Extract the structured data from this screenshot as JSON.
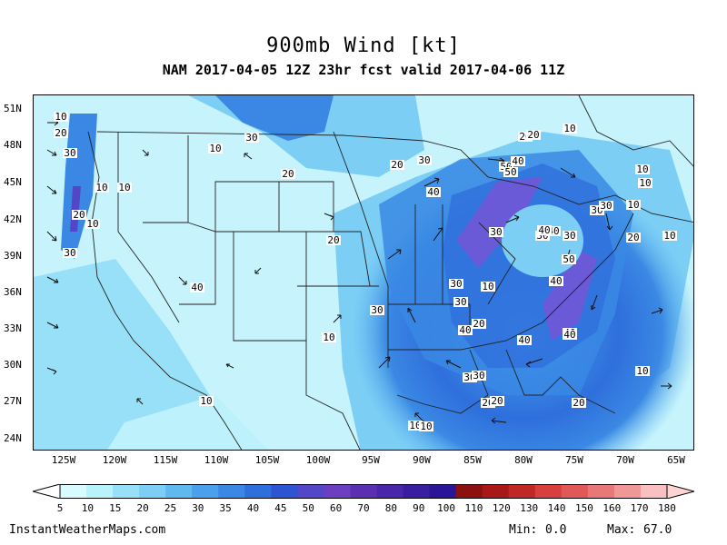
{
  "title": "900mb Wind [kt]",
  "subtitle": "NAM 2017-04-05 12Z 23hr fcst valid 2017-04-06 11Z",
  "latitudes": [
    "51N",
    "48N",
    "45N",
    "42N",
    "39N",
    "36N",
    "33N",
    "30N",
    "27N",
    "24N"
  ],
  "longitudes": [
    "125W",
    "120W",
    "115W",
    "110W",
    "105W",
    "100W",
    "95W",
    "90W",
    "85W",
    "80W",
    "75W",
    "70W",
    "65W"
  ],
  "colorbar": {
    "labels": [
      "5",
      "10",
      "15",
      "20",
      "25",
      "30",
      "35",
      "40",
      "45",
      "50",
      "60",
      "70",
      "80",
      "90",
      "100",
      "110",
      "120",
      "130",
      "140",
      "150",
      "160",
      "170",
      "180"
    ],
    "colors": [
      "#d8fbff",
      "#b8f2fb",
      "#98e0f7",
      "#7ccef5",
      "#5fb8ee",
      "#4aa0ea",
      "#3a88e4",
      "#2f6fdc",
      "#2d55d2",
      "#5347c7",
      "#6b3fc0",
      "#5a30b0",
      "#4a27a8",
      "#3a1ea0",
      "#2a1596",
      "#8b1010",
      "#a81818",
      "#c02828",
      "#d84040",
      "#e05858",
      "#e87878",
      "#f09898",
      "#f8c0c0"
    ],
    "left_arrow_color": "#ffffff",
    "right_arrow_color": "#fdd3d3"
  },
  "map": {
    "contour_labels": [
      "10",
      "20",
      "30",
      "10",
      "10",
      "20",
      "10",
      "30",
      "10",
      "20",
      "30",
      "40",
      "20",
      "30",
      "40",
      "50",
      "50",
      "30",
      "40",
      "30",
      "40",
      "30",
      "40",
      "50",
      "40",
      "30",
      "20",
      "10",
      "20",
      "30",
      "10",
      "10",
      "10",
      "10",
      "20",
      "10",
      "30",
      "20",
      "10",
      "30",
      "40",
      "40",
      "20",
      "10",
      "20",
      "10",
      "10",
      "20",
      "30",
      "40",
      "30",
      "40",
      "40",
      "30",
      "20",
      "10"
    ]
  },
  "footer": {
    "source": "InstantWeatherMaps.com",
    "min_label": "Min:",
    "min_value": "0.0",
    "max_label": "Max:",
    "max_value": "67.0"
  }
}
